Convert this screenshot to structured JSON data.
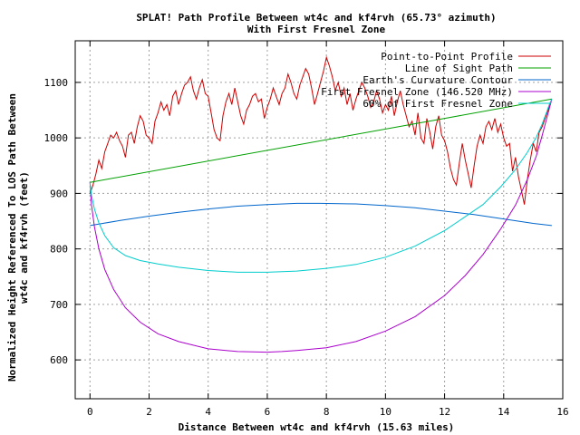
{
  "chart_data": {
    "type": "line",
    "title": "SPLAT! Path Profile Between wt4c and kf4rvh (65.73° azimuth)",
    "subtitle": "With First Fresnel Zone",
    "xlabel": "Distance Between wt4c and kf4rvh (15.63 miles)",
    "ylabel_line1": "Normalized Height Referenced To LOS Path Between",
    "ylabel_line2": "wt4c and kf4rvh (feet)",
    "xlim": [
      -0.5,
      16
    ],
    "ylim": [
      530,
      1175
    ],
    "x_ticks": [
      0,
      2,
      4,
      6,
      8,
      10,
      12,
      14,
      16
    ],
    "y_ticks": [
      600,
      700,
      800,
      900,
      1000,
      1100
    ],
    "grid": true,
    "legend_position": "top-right",
    "series": [
      {
        "name": "Point-to-Point Profile",
        "color": "#cc0000",
        "x": [
          0,
          0.1,
          0.2,
          0.3,
          0.4,
          0.5,
          0.6,
          0.7,
          0.8,
          0.9,
          1.0,
          1.1,
          1.2,
          1.3,
          1.4,
          1.5,
          1.6,
          1.7,
          1.8,
          1.9,
          2.0,
          2.1,
          2.2,
          2.3,
          2.4,
          2.5,
          2.6,
          2.7,
          2.8,
          2.9,
          3.0,
          3.1,
          3.2,
          3.3,
          3.4,
          3.5,
          3.6,
          3.7,
          3.8,
          3.9,
          4.0,
          4.1,
          4.2,
          4.3,
          4.4,
          4.5,
          4.6,
          4.7,
          4.8,
          4.9,
          5.0,
          5.1,
          5.2,
          5.3,
          5.4,
          5.5,
          5.6,
          5.7,
          5.8,
          5.9,
          6.0,
          6.1,
          6.2,
          6.3,
          6.4,
          6.5,
          6.6,
          6.7,
          6.8,
          6.9,
          7.0,
          7.1,
          7.2,
          7.3,
          7.4,
          7.5,
          7.6,
          7.7,
          7.8,
          7.9,
          8.0,
          8.1,
          8.2,
          8.3,
          8.4,
          8.5,
          8.6,
          8.7,
          8.8,
          8.9,
          9.0,
          9.1,
          9.2,
          9.3,
          9.4,
          9.5,
          9.6,
          9.7,
          9.8,
          9.9,
          10.0,
          10.1,
          10.2,
          10.3,
          10.4,
          10.5,
          10.6,
          10.7,
          10.8,
          10.9,
          11.0,
          11.1,
          11.2,
          11.3,
          11.4,
          11.5,
          11.6,
          11.7,
          11.8,
          11.9,
          12.0,
          12.1,
          12.2,
          12.3,
          12.4,
          12.5,
          12.6,
          12.7,
          12.8,
          12.9,
          13.0,
          13.1,
          13.2,
          13.3,
          13.4,
          13.5,
          13.6,
          13.7,
          13.8,
          13.9,
          14.0,
          14.1,
          14.2,
          14.3,
          14.4,
          14.5,
          14.6,
          14.7,
          14.8,
          14.9,
          15.0,
          15.1,
          15.2,
          15.3,
          15.4,
          15.5,
          15.6
        ],
        "y": [
          900,
          915,
          935,
          960,
          945,
          975,
          990,
          1005,
          1000,
          1010,
          995,
          985,
          965,
          1005,
          1010,
          990,
          1020,
          1040,
          1030,
          1005,
          1000,
          990,
          1030,
          1045,
          1065,
          1050,
          1060,
          1040,
          1075,
          1085,
          1060,
          1080,
          1095,
          1100,
          1110,
          1085,
          1070,
          1090,
          1105,
          1080,
          1075,
          1045,
          1015,
          1000,
          995,
          1040,
          1065,
          1080,
          1060,
          1090,
          1065,
          1040,
          1025,
          1050,
          1060,
          1075,
          1080,
          1065,
          1070,
          1035,
          1055,
          1070,
          1090,
          1075,
          1060,
          1080,
          1090,
          1115,
          1100,
          1080,
          1070,
          1095,
          1110,
          1125,
          1115,
          1090,
          1060,
          1080,
          1100,
          1120,
          1145,
          1130,
          1110,
          1085,
          1100,
          1075,
          1090,
          1060,
          1080,
          1050,
          1070,
          1085,
          1100,
          1090,
          1075,
          1055,
          1065,
          1085,
          1070,
          1045,
          1060,
          1050,
          1075,
          1040,
          1065,
          1085,
          1060,
          1040,
          1020,
          1030,
          1005,
          1045,
          1000,
          990,
          1035,
          1010,
          980,
          1020,
          1040,
          1005,
          995,
          975,
          945,
          925,
          915,
          955,
          990,
          960,
          935,
          910,
          950,
          985,
          1005,
          990,
          1020,
          1030,
          1015,
          1035,
          1010,
          1025,
          1000,
          985,
          990,
          940,
          965,
          930,
          905,
          880,
          925,
          960,
          990,
          975,
          1010,
          1020,
          1035,
          1050,
          1065
        ]
      },
      {
        "name": "Line of Sight Path",
        "color": "#00a000",
        "x": [
          0,
          15.63
        ],
        "y": [
          920,
          1070
        ]
      },
      {
        "name": "Earth's Curvature Contour",
        "color": "#0066cc",
        "x": [
          0,
          1,
          2,
          3,
          4,
          5,
          6,
          7,
          7.8,
          9,
          10,
          11,
          12,
          13,
          14,
          15,
          15.63
        ],
        "y": [
          842,
          851,
          859,
          866,
          872,
          877,
          880,
          882,
          882,
          881,
          878,
          874,
          868,
          862,
          854,
          846,
          842
        ]
      },
      {
        "name": "First Fresnel Zone (146.520 MHz)",
        "color": "#aa00cc",
        "x": [
          0,
          0.05,
          0.15,
          0.3,
          0.5,
          0.8,
          1.2,
          1.7,
          2.3,
          3,
          4,
          5,
          6,
          6.5,
          7,
          8,
          9,
          10,
          11,
          12,
          12.7,
          13.3,
          13.9,
          14.4,
          14.8,
          15.1,
          15.3,
          15.45,
          15.55,
          15.63
        ],
        "y": [
          920,
          880,
          840,
          800,
          763,
          727,
          694,
          668,
          647,
          633,
          620,
          615,
          614,
          615,
          617,
          622,
          633,
          652,
          678,
          716,
          752,
          790,
          836,
          879,
          925,
          967,
          1004,
          1034,
          1054,
          1070
        ]
      },
      {
        "name": "60% of First Fresnel Zone",
        "color": "#00cccc",
        "x": [
          0,
          0.05,
          0.15,
          0.3,
          0.5,
          0.8,
          1.2,
          1.7,
          2.3,
          3,
          4,
          5,
          6,
          7,
          8,
          9,
          10,
          11,
          12,
          12.7,
          13.3,
          13.9,
          14.4,
          14.8,
          15.1,
          15.3,
          15.45,
          15.55,
          15.63
        ],
        "y": [
          920,
          897,
          872,
          847,
          824,
          802,
          788,
          779,
          773,
          767,
          761,
          758,
          758,
          760,
          765,
          772,
          785,
          805,
          833,
          858,
          880,
          912,
          943,
          974,
          1001,
          1025,
          1046,
          1061,
          1070
        ]
      }
    ]
  }
}
